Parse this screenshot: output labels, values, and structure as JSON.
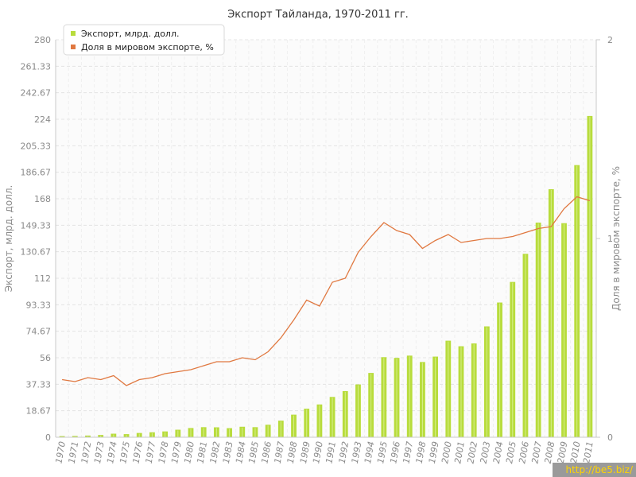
{
  "chart_data": {
    "type": "bar",
    "title": "Экспорт Тайланда, 1970-2011 гг.",
    "ylabel_left": "Экспорт, млрд. долл.",
    "ylabel_right": "Доля в мировом экспорте, %",
    "ylim_left": [
      0,
      280
    ],
    "ylim_right": [
      0,
      2
    ],
    "yticks_left": [
      "0",
      "18.67",
      "37.33",
      "56",
      "74.67",
      "93.33",
      "112",
      "130.67",
      "149.33",
      "168",
      "186.67",
      "205.33",
      "224",
      "242.67",
      "261.33",
      "280"
    ],
    "yticks_right": [
      "0",
      "1",
      "2"
    ],
    "grid": true,
    "legend_position": "top-left",
    "categories": [
      "1970",
      "1971",
      "1972",
      "1973",
      "1974",
      "1975",
      "1976",
      "1977",
      "1978",
      "1979",
      "1980",
      "1981",
      "1982",
      "1983",
      "1984",
      "1985",
      "1986",
      "1987",
      "1988",
      "1989",
      "1990",
      "1991",
      "1992",
      "1993",
      "1994",
      "1995",
      "1996",
      "1997",
      "1998",
      "1999",
      "2000",
      "2001",
      "2002",
      "2003",
      "2004",
      "2005",
      "2006",
      "2007",
      "2008",
      "2009",
      "2010",
      "2011"
    ],
    "series": [
      {
        "name": "Экспорт, млрд. долл.",
        "type": "bar",
        "axis": "left",
        "color": "#b8dc3c",
        "values": [
          0.8,
          0.9,
          1.2,
          1.6,
          2.5,
          2.2,
          3.0,
          3.5,
          4.1,
          5.3,
          6.5,
          7.1,
          7.0,
          6.4,
          7.4,
          7.1,
          8.8,
          11.7,
          15.9,
          20.1,
          23.1,
          28.4,
          32.5,
          37.2,
          45.3,
          56.4,
          55.9,
          57.5,
          53.0,
          56.8,
          68.0,
          64.1,
          66.1,
          78.1,
          94.9,
          109.4,
          129.2,
          151.2,
          174.7,
          150.8,
          191.7,
          226.3
        ]
      },
      {
        "name": "Доля в мировом экспорте, %",
        "type": "line",
        "axis": "right",
        "color": "#e07840",
        "values": [
          0.29,
          0.28,
          0.3,
          0.29,
          0.31,
          0.26,
          0.29,
          0.3,
          0.32,
          0.33,
          0.34,
          0.36,
          0.38,
          0.38,
          0.4,
          0.39,
          0.43,
          0.5,
          0.59,
          0.69,
          0.66,
          0.78,
          0.8,
          0.93,
          1.01,
          1.08,
          1.04,
          1.02,
          0.95,
          0.99,
          1.02,
          0.98,
          0.99,
          1.0,
          1.0,
          1.01,
          1.03,
          1.05,
          1.06,
          1.15,
          1.21,
          1.19
        ]
      }
    ]
  },
  "watermark": "http://be5.biz/",
  "colors": {
    "bar": "#b8dc3c",
    "line": "#e07840",
    "grid": "#e4e4e4",
    "axis": "#c8c8c8"
  }
}
